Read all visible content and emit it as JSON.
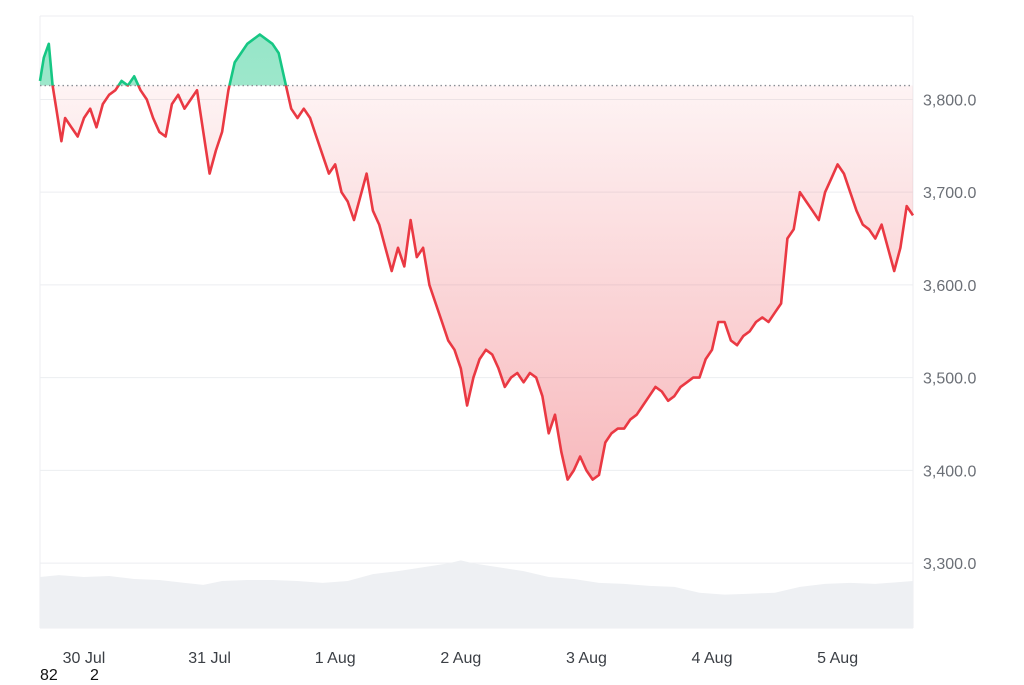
{
  "chart_data": {
    "type": "line",
    "title": "",
    "xlabel": "",
    "ylabel": "",
    "baseline": 3815,
    "ylim": [
      3230,
      3890
    ],
    "y_ticks": [
      "3,300.0",
      "3,400.0",
      "3,500.0",
      "3,600.0",
      "3,700.0",
      "3,800.0"
    ],
    "y_tick_values": [
      3300,
      3400,
      3500,
      3600,
      3700,
      3800
    ],
    "x_ticks": [
      "30 Jul",
      "31 Jul",
      "1 Aug",
      "2 Aug",
      "3 Aug",
      "4 Aug",
      "5 Aug"
    ],
    "x_tick_values": [
      0,
      1,
      2,
      3,
      4,
      5,
      6
    ],
    "xlim": [
      -0.35,
      6.6
    ],
    "series": [
      {
        "values": [
          [
            -0.35,
            3820
          ],
          [
            -0.32,
            3845
          ],
          [
            -0.28,
            3860
          ],
          [
            -0.25,
            3815
          ],
          [
            -0.22,
            3790
          ],
          [
            -0.18,
            3755
          ],
          [
            -0.15,
            3780
          ],
          [
            -0.1,
            3770
          ],
          [
            -0.05,
            3760
          ],
          [
            0.0,
            3780
          ],
          [
            0.05,
            3790
          ],
          [
            0.1,
            3770
          ],
          [
            0.15,
            3795
          ],
          [
            0.2,
            3805
          ],
          [
            0.25,
            3810
          ],
          [
            0.3,
            3820
          ],
          [
            0.35,
            3815
          ],
          [
            0.4,
            3825
          ],
          [
            0.45,
            3810
          ],
          [
            0.5,
            3800
          ],
          [
            0.55,
            3780
          ],
          [
            0.6,
            3765
          ],
          [
            0.65,
            3760
          ],
          [
            0.7,
            3795
          ],
          [
            0.75,
            3805
          ],
          [
            0.8,
            3790
          ],
          [
            0.85,
            3800
          ],
          [
            0.9,
            3810
          ],
          [
            0.95,
            3765
          ],
          [
            1.0,
            3720
          ],
          [
            1.05,
            3745
          ],
          [
            1.1,
            3765
          ],
          [
            1.15,
            3810
          ],
          [
            1.2,
            3840
          ],
          [
            1.25,
            3850
          ],
          [
            1.3,
            3860
          ],
          [
            1.35,
            3865
          ],
          [
            1.4,
            3870
          ],
          [
            1.45,
            3865
          ],
          [
            1.5,
            3860
          ],
          [
            1.55,
            3850
          ],
          [
            1.6,
            3820
          ],
          [
            1.65,
            3790
          ],
          [
            1.7,
            3780
          ],
          [
            1.75,
            3790
          ],
          [
            1.8,
            3780
          ],
          [
            1.85,
            3760
          ],
          [
            1.9,
            3740
          ],
          [
            1.95,
            3720
          ],
          [
            2.0,
            3730
          ],
          [
            2.05,
            3700
          ],
          [
            2.1,
            3690
          ],
          [
            2.15,
            3670
          ],
          [
            2.2,
            3695
          ],
          [
            2.25,
            3720
          ],
          [
            2.3,
            3680
          ],
          [
            2.35,
            3665
          ],
          [
            2.4,
            3640
          ],
          [
            2.45,
            3615
          ],
          [
            2.5,
            3640
          ],
          [
            2.55,
            3620
          ],
          [
            2.6,
            3670
          ],
          [
            2.65,
            3630
          ],
          [
            2.7,
            3640
          ],
          [
            2.75,
            3600
          ],
          [
            2.8,
            3580
          ],
          [
            2.85,
            3560
          ],
          [
            2.9,
            3540
          ],
          [
            2.95,
            3530
          ],
          [
            3.0,
            3510
          ],
          [
            3.05,
            3470
          ],
          [
            3.1,
            3500
          ],
          [
            3.15,
            3520
          ],
          [
            3.2,
            3530
          ],
          [
            3.25,
            3525
          ],
          [
            3.3,
            3510
          ],
          [
            3.35,
            3490
          ],
          [
            3.4,
            3500
          ],
          [
            3.45,
            3505
          ],
          [
            3.5,
            3495
          ],
          [
            3.55,
            3505
          ],
          [
            3.6,
            3500
          ],
          [
            3.65,
            3480
          ],
          [
            3.7,
            3440
          ],
          [
            3.75,
            3460
          ],
          [
            3.8,
            3420
          ],
          [
            3.85,
            3390
          ],
          [
            3.9,
            3400
          ],
          [
            3.95,
            3415
          ],
          [
            4.0,
            3400
          ],
          [
            4.05,
            3390
          ],
          [
            4.1,
            3395
          ],
          [
            4.15,
            3430
          ],
          [
            4.2,
            3440
          ],
          [
            4.25,
            3445
          ],
          [
            4.3,
            3445
          ],
          [
            4.35,
            3455
          ],
          [
            4.4,
            3460
          ],
          [
            4.45,
            3470
          ],
          [
            4.5,
            3480
          ],
          [
            4.55,
            3490
          ],
          [
            4.6,
            3485
          ],
          [
            4.65,
            3475
          ],
          [
            4.7,
            3480
          ],
          [
            4.75,
            3490
          ],
          [
            4.8,
            3495
          ],
          [
            4.85,
            3500
          ],
          [
            4.9,
            3500
          ],
          [
            4.95,
            3520
          ],
          [
            5.0,
            3530
          ],
          [
            5.05,
            3560
          ],
          [
            5.1,
            3560
          ],
          [
            5.15,
            3540
          ],
          [
            5.2,
            3535
          ],
          [
            5.25,
            3545
          ],
          [
            5.3,
            3550
          ],
          [
            5.35,
            3560
          ],
          [
            5.4,
            3565
          ],
          [
            5.45,
            3560
          ],
          [
            5.5,
            3570
          ],
          [
            5.55,
            3580
          ],
          [
            5.6,
            3650
          ],
          [
            5.65,
            3660
          ],
          [
            5.7,
            3700
          ],
          [
            5.75,
            3690
          ],
          [
            5.8,
            3680
          ],
          [
            5.85,
            3670
          ],
          [
            5.9,
            3700
          ],
          [
            5.95,
            3715
          ],
          [
            6.0,
            3730
          ],
          [
            6.05,
            3720
          ],
          [
            6.1,
            3700
          ],
          [
            6.15,
            3680
          ],
          [
            6.2,
            3665
          ],
          [
            6.25,
            3660
          ],
          [
            6.3,
            3650
          ],
          [
            6.35,
            3665
          ],
          [
            6.4,
            3640
          ],
          [
            6.45,
            3615
          ],
          [
            6.5,
            3640
          ],
          [
            6.55,
            3685
          ],
          [
            6.6,
            3675
          ]
        ]
      }
    ],
    "volume": [
      [
        -0.35,
        0.52
      ],
      [
        -0.2,
        0.54
      ],
      [
        0.0,
        0.52
      ],
      [
        0.2,
        0.53
      ],
      [
        0.4,
        0.5
      ],
      [
        0.6,
        0.49
      ],
      [
        0.8,
        0.46
      ],
      [
        0.95,
        0.44
      ],
      [
        1.1,
        0.48
      ],
      [
        1.3,
        0.49
      ],
      [
        1.5,
        0.49
      ],
      [
        1.7,
        0.48
      ],
      [
        1.9,
        0.46
      ],
      [
        2.1,
        0.48
      ],
      [
        2.3,
        0.55
      ],
      [
        2.5,
        0.58
      ],
      [
        2.7,
        0.62
      ],
      [
        2.9,
        0.66
      ],
      [
        3.0,
        0.69
      ],
      [
        3.1,
        0.66
      ],
      [
        3.3,
        0.62
      ],
      [
        3.5,
        0.58
      ],
      [
        3.7,
        0.52
      ],
      [
        3.9,
        0.5
      ],
      [
        4.1,
        0.46
      ],
      [
        4.3,
        0.45
      ],
      [
        4.5,
        0.43
      ],
      [
        4.7,
        0.42
      ],
      [
        4.9,
        0.36
      ],
      [
        5.1,
        0.34
      ],
      [
        5.3,
        0.35
      ],
      [
        5.5,
        0.36
      ],
      [
        5.7,
        0.42
      ],
      [
        5.9,
        0.45
      ],
      [
        6.1,
        0.46
      ],
      [
        6.3,
        0.45
      ],
      [
        6.6,
        0.48
      ]
    ],
    "colors": {
      "up": "#16c784",
      "down": "#ea3943",
      "baseline": "#8a8f96",
      "grid": "#eceef1",
      "volume": "#eef0f3"
    }
  },
  "footer": {
    "left": "82",
    "right": "2"
  }
}
